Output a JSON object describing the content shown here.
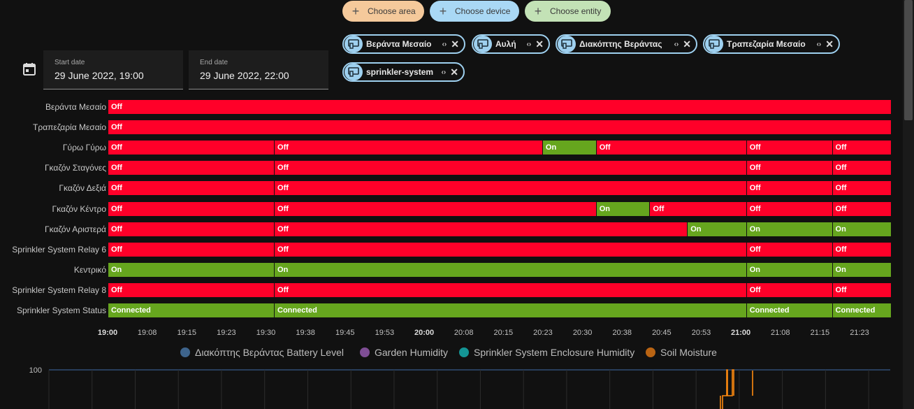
{
  "picker": {
    "area_label": "Choose area",
    "device_label": "Choose device",
    "entity_label": "Choose entity"
  },
  "targets": [
    {
      "name": "Βεράντα Μεσαίο"
    },
    {
      "name": "Αυλή"
    },
    {
      "name": "Διακόπτης Βεράντας"
    },
    {
      "name": "Τραπεζαρία Μεσαίο"
    },
    {
      "name": "sprinkler-system"
    }
  ],
  "dates": {
    "start_label": "Start date",
    "start_value": "29 June 2022, 19:00",
    "end_label": "End date",
    "end_value": "29 June 2022, 22:00"
  },
  "timeline": {
    "start": "19:00",
    "end": "21:26",
    "ticks": [
      {
        "label": "19:00",
        "major": true
      },
      {
        "label": "19:08",
        "major": false
      },
      {
        "label": "19:15",
        "major": false
      },
      {
        "label": "19:23",
        "major": false
      },
      {
        "label": "19:30",
        "major": false
      },
      {
        "label": "19:38",
        "major": false
      },
      {
        "label": "19:45",
        "major": false
      },
      {
        "label": "19:53",
        "major": false
      },
      {
        "label": "20:00",
        "major": true
      },
      {
        "label": "20:08",
        "major": false
      },
      {
        "label": "20:15",
        "major": false
      },
      {
        "label": "20:23",
        "major": false
      },
      {
        "label": "20:30",
        "major": false
      },
      {
        "label": "20:38",
        "major": false
      },
      {
        "label": "20:45",
        "major": false
      },
      {
        "label": "20:53",
        "major": false
      },
      {
        "label": "21:00",
        "major": true
      },
      {
        "label": "21:08",
        "major": false
      },
      {
        "label": "21:15",
        "major": false
      },
      {
        "label": "21:23",
        "major": false
      }
    ],
    "rows": [
      {
        "label": "Βεράντα Μεσαίο",
        "segments": [
          {
            "start": "19:00",
            "state": "Off"
          }
        ]
      },
      {
        "label": "Τραπεζαρία Μεσαίο",
        "segments": [
          {
            "start": "19:00",
            "state": "Off"
          }
        ]
      },
      {
        "label": "Γύρω Γύρω",
        "segments": [
          {
            "start": "19:00",
            "state": "Off"
          },
          {
            "start": "19:31",
            "state": "Off"
          },
          {
            "start": "20:21",
            "state": "On"
          },
          {
            "start": "20:31",
            "state": "Off"
          },
          {
            "start": "20:59",
            "state": "Off"
          },
          {
            "start": "21:15",
            "state": "Off"
          }
        ]
      },
      {
        "label": "Γκαζόν Σταγόνες",
        "segments": [
          {
            "start": "19:00",
            "state": "Off"
          },
          {
            "start": "19:31",
            "state": "Off"
          },
          {
            "start": "20:59",
            "state": "Off"
          },
          {
            "start": "21:15",
            "state": "Off"
          }
        ]
      },
      {
        "label": "Γκαζόν Δεξιά",
        "segments": [
          {
            "start": "19:00",
            "state": "Off"
          },
          {
            "start": "19:31",
            "state": "Off"
          },
          {
            "start": "20:59",
            "state": "Off"
          },
          {
            "start": "21:15",
            "state": "Off"
          }
        ]
      },
      {
        "label": "Γκαζόν Κέντρο",
        "segments": [
          {
            "start": "19:00",
            "state": "Off"
          },
          {
            "start": "19:31",
            "state": "Off"
          },
          {
            "start": "20:31",
            "state": "On"
          },
          {
            "start": "20:41",
            "state": "Off"
          },
          {
            "start": "20:59",
            "state": "Off"
          },
          {
            "start": "21:15",
            "state": "Off"
          }
        ]
      },
      {
        "label": "Γκαζόν Αριστερά",
        "segments": [
          {
            "start": "19:00",
            "state": "Off"
          },
          {
            "start": "19:31",
            "state": "Off"
          },
          {
            "start": "20:48",
            "state": "On"
          },
          {
            "start": "20:59",
            "state": "On"
          },
          {
            "start": "21:15",
            "state": "On"
          }
        ]
      },
      {
        "label": "Sprinkler System Relay 6",
        "segments": [
          {
            "start": "19:00",
            "state": "Off"
          },
          {
            "start": "19:31",
            "state": "Off"
          },
          {
            "start": "20:59",
            "state": "Off"
          },
          {
            "start": "21:15",
            "state": "Off"
          }
        ]
      },
      {
        "label": "Κεντρικό",
        "segments": [
          {
            "start": "19:00",
            "state": "On"
          },
          {
            "start": "19:31",
            "state": "On"
          },
          {
            "start": "20:59",
            "state": "On"
          },
          {
            "start": "21:15",
            "state": "On"
          }
        ]
      },
      {
        "label": "Sprinkler System Relay 8",
        "segments": [
          {
            "start": "19:00",
            "state": "Off"
          },
          {
            "start": "19:31",
            "state": "Off"
          },
          {
            "start": "20:59",
            "state": "Off"
          },
          {
            "start": "21:15",
            "state": "Off"
          }
        ]
      },
      {
        "label": "Sprinkler System Status",
        "segments": [
          {
            "start": "19:00",
            "state": "Connected"
          },
          {
            "start": "19:31",
            "state": "Connected"
          },
          {
            "start": "20:59",
            "state": "Connected"
          },
          {
            "start": "21:15",
            "state": "Connected"
          }
        ]
      }
    ]
  },
  "legend": [
    {
      "label": "Διακόπτης Βεράντας Battery Level",
      "color": "#2e4a68"
    },
    {
      "label": "Garden Humidity",
      "color": "#5e3a6e"
    },
    {
      "label": "Sprinkler System Enclosure Humidity",
      "color": "#0f6e6e"
    },
    {
      "label": "Soil Moisture",
      "color": "#8a4a0e"
    }
  ],
  "sensor_chart": {
    "y_tick_label": "100"
  },
  "colors": {
    "off": "#ff0029",
    "on": "#66a61e",
    "soil_line": "#ff8a0f"
  }
}
